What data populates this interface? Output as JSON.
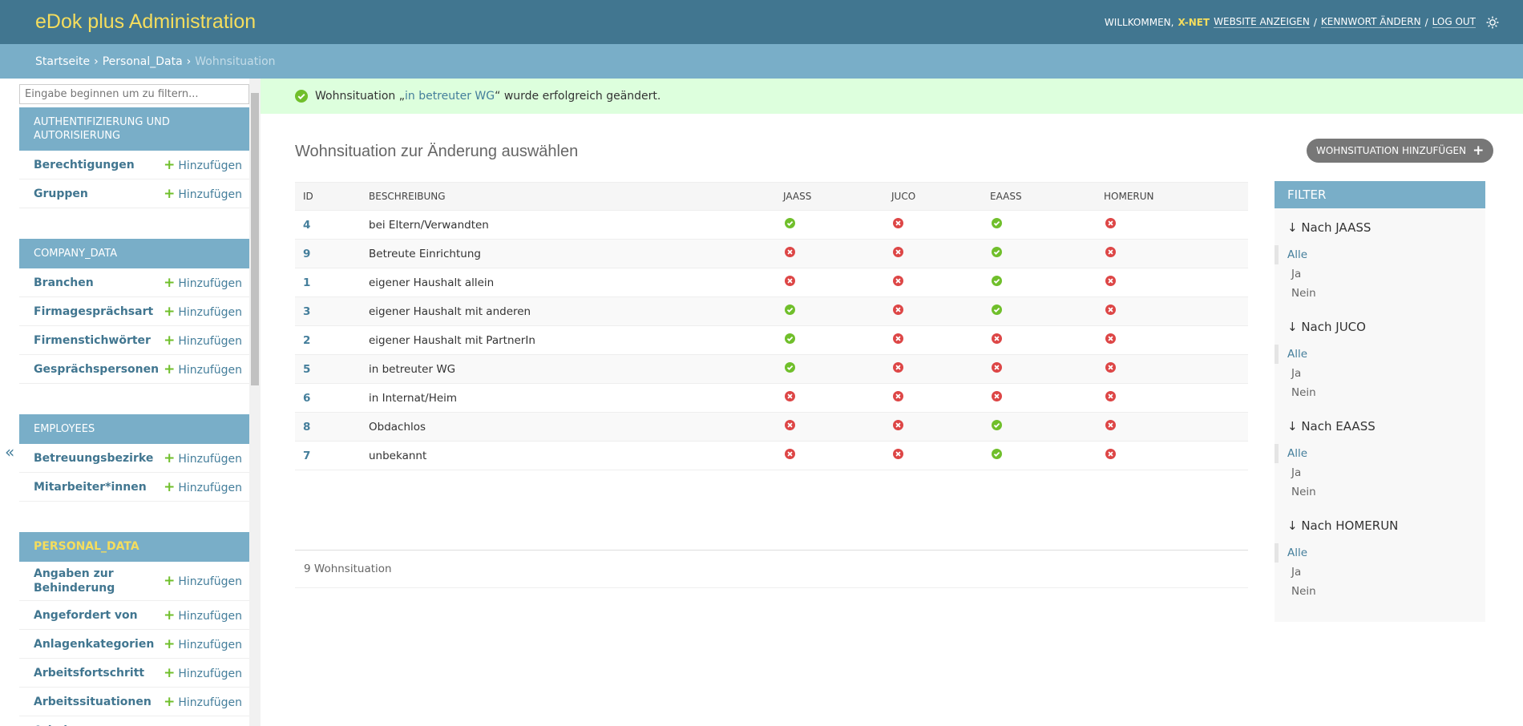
{
  "header": {
    "title": "eDok plus Administration",
    "welcome": "WILLKOMMEN,",
    "user": "X-NET",
    "links": [
      "WEBSITE ANZEIGEN",
      "KENNWORT ÄNDERN",
      "LOG OUT"
    ],
    "separator": "/"
  },
  "breadcrumbs": {
    "items": [
      "Startseite",
      "Personal_Data",
      "Wohnsituation"
    ],
    "separator": "›"
  },
  "sidebar": {
    "filter_placeholder": "Eingabe beginnen um zu filtern...",
    "collapse_toggle": "«",
    "add_label": "Hinzufügen",
    "current_app": 3,
    "apps": [
      {
        "name": "AUTHENTIFIZIERUNG UND AUTORISIERUNG",
        "models": [
          "Berechtigungen",
          "Gruppen"
        ]
      },
      {
        "name": "COMPANY_DATA",
        "models": [
          "Branchen",
          "Firmagesprächsart",
          "Firmenstichwörter",
          "Gesprächspersonen"
        ]
      },
      {
        "name": "EMPLOYEES",
        "models": [
          "Betreuungsbezirke",
          "Mitarbeiter*innen"
        ]
      },
      {
        "name": "PERSONAL_DATA",
        "models": [
          "Angaben zur Behinderung",
          "Angefordert von",
          "Anlagenkategorien",
          "Arbeitsfortschritt",
          "Arbeitssituationen",
          "Arbeitsstatus"
        ]
      }
    ]
  },
  "message": {
    "prefix": "Wohnsituation „",
    "link": "in betreuter WG",
    "suffix": "“ wurde erfolgreich geändert."
  },
  "content": {
    "title": "Wohnsituation zur Änderung auswählen",
    "add_button": "WOHNSITUATION HINZUFÜGEN",
    "table": {
      "headers": [
        "ID",
        "BESCHREIBUNG",
        "JAASS",
        "JUCO",
        "EAASS",
        "HOMERUN"
      ],
      "rows": [
        [
          4,
          "bei Eltern/Verwandten",
          true,
          false,
          true,
          false
        ],
        [
          9,
          "Betreute Einrichtung",
          false,
          false,
          true,
          false
        ],
        [
          1,
          "eigener Haushalt allein",
          false,
          false,
          true,
          false
        ],
        [
          3,
          "eigener Haushalt mit anderen",
          true,
          false,
          true,
          false
        ],
        [
          2,
          "eigener Haushalt mit PartnerIn",
          true,
          false,
          false,
          false
        ],
        [
          5,
          "in betreuter WG",
          true,
          false,
          false,
          false
        ],
        [
          6,
          "in Internat/Heim",
          false,
          false,
          false,
          false
        ],
        [
          8,
          "Obdachlos",
          false,
          false,
          true,
          false
        ],
        [
          7,
          "unbekannt",
          false,
          false,
          true,
          false
        ]
      ],
      "footer": "9 Wohnsituation"
    }
  },
  "filter": {
    "title": "FILTER",
    "groups": [
      {
        "title": "↓ Nach JAASS",
        "options": [
          "Alle",
          "Ja",
          "Nein"
        ],
        "selected": 0
      },
      {
        "title": "↓ Nach JUCO",
        "options": [
          "Alle",
          "Ja",
          "Nein"
        ],
        "selected": 0
      },
      {
        "title": "↓ Nach EAASS",
        "options": [
          "Alle",
          "Ja",
          "Nein"
        ],
        "selected": 0
      },
      {
        "title": "↓ Nach HOMERUN",
        "options": [
          "Alle",
          "Ja",
          "Nein"
        ],
        "selected": 0
      }
    ]
  }
}
